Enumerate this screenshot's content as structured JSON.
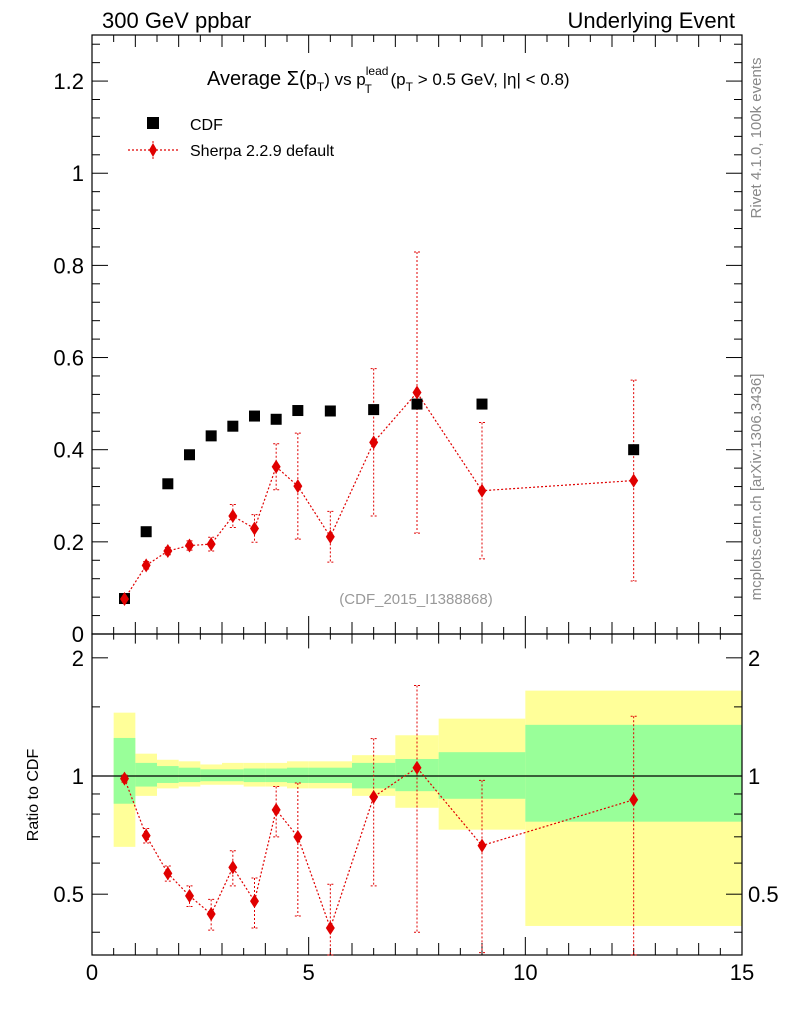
{
  "header": {
    "left": "300 GeV ppbar",
    "right": "Underlying Event"
  },
  "side_labels": {
    "rivet": "Rivet 4.1.0,  100k events",
    "mcplots": "mcplots.cern.ch [arXiv:1306.3436]"
  },
  "chart_data": [
    {
      "type": "scatter",
      "title_parts": {
        "average": "Average",
        "sigma": "Σ(p",
        "sub_t": "T",
        "vs": ") vs p",
        "sup_lead": "lead",
        "cond": "(p",
        "cond_rest": "> 0.5 GeV, |η| < 0.8)"
      },
      "analysis_id": "(CDF_2015_I1388868)",
      "xlim": [
        0,
        15
      ],
      "ylim": [
        0,
        1.3
      ],
      "yticks": [
        0,
        0.2,
        0.4,
        0.6,
        0.8,
        1,
        1.2
      ],
      "ytick_labels": [
        "0",
        "0.2",
        "0.4",
        "0.6",
        "0.8",
        "1",
        "1.2"
      ],
      "legend": [
        {
          "name": "CDF",
          "marker": "square",
          "color": "#000000"
        },
        {
          "name": "Sherpa 2.2.9 default",
          "marker": "diamond",
          "color": "#e00000"
        }
      ],
      "series": [
        {
          "name": "CDF",
          "x": [
            0.75,
            1.25,
            1.75,
            2.25,
            2.75,
            3.25,
            3.75,
            4.25,
            4.75,
            5.5,
            6.5,
            7.5,
            9.0,
            12.5
          ],
          "y": [
            0.077,
            0.222,
            0.326,
            0.389,
            0.43,
            0.451,
            0.473,
            0.466,
            0.485,
            0.484,
            0.487,
            0.499,
            0.499,
            0.4
          ]
        },
        {
          "name": "Sherpa 2.2.9 default",
          "x": [
            0.75,
            1.25,
            1.75,
            2.25,
            2.75,
            3.25,
            3.75,
            4.25,
            4.75,
            5.5,
            6.5,
            7.5,
            9.0,
            12.5
          ],
          "y": [
            0.076,
            0.149,
            0.18,
            0.192,
            0.195,
            0.256,
            0.229,
            0.363,
            0.321,
            0.211,
            0.416,
            0.524,
            0.311,
            0.333
          ],
          "err": [
            0.005,
            0.008,
            0.008,
            0.01,
            0.015,
            0.025,
            0.03,
            0.05,
            0.115,
            0.055,
            0.16,
            0.305,
            0.148,
            0.218
          ]
        }
      ]
    },
    {
      "type": "ratio",
      "ylabel": "Ratio to CDF",
      "xlim": [
        0,
        15
      ],
      "ylim": [
        0.35,
        2.3
      ],
      "yticks": [
        0.5,
        1,
        2
      ],
      "ytick_labels": [
        "0.5",
        "1",
        "2"
      ],
      "xticks": [
        0,
        5,
        10,
        15
      ],
      "xtick_labels": [
        "0",
        "5",
        "10",
        "15"
      ],
      "bands": [
        {
          "x0": 0.5,
          "x1": 1.0,
          "g": [
            0.85,
            1.25
          ],
          "y": [
            0.66,
            1.45
          ]
        },
        {
          "x0": 1.0,
          "x1": 1.5,
          "g": [
            0.94,
            1.08
          ],
          "y": [
            0.89,
            1.14
          ]
        },
        {
          "x0": 1.5,
          "x1": 2.0,
          "g": [
            0.96,
            1.06
          ],
          "y": [
            0.93,
            1.1
          ]
        },
        {
          "x0": 2.0,
          "x1": 2.5,
          "g": [
            0.965,
            1.05
          ],
          "y": [
            0.94,
            1.09
          ]
        },
        {
          "x0": 2.5,
          "x1": 3.0,
          "g": [
            0.97,
            1.04
          ],
          "y": [
            0.95,
            1.07
          ]
        },
        {
          "x0": 3.0,
          "x1": 3.5,
          "g": [
            0.97,
            1.04
          ],
          "y": [
            0.95,
            1.08
          ]
        },
        {
          "x0": 3.5,
          "x1": 4.0,
          "g": [
            0.965,
            1.045
          ],
          "y": [
            0.94,
            1.08
          ]
        },
        {
          "x0": 4.0,
          "x1": 4.5,
          "g": [
            0.965,
            1.045
          ],
          "y": [
            0.94,
            1.08
          ]
        },
        {
          "x0": 4.5,
          "x1": 5.0,
          "g": [
            0.96,
            1.05
          ],
          "y": [
            0.93,
            1.09
          ]
        },
        {
          "x0": 5.0,
          "x1": 6.0,
          "g": [
            0.96,
            1.05
          ],
          "y": [
            0.93,
            1.09
          ]
        },
        {
          "x0": 6.0,
          "x1": 7.0,
          "g": [
            0.93,
            1.08
          ],
          "y": [
            0.89,
            1.13
          ]
        },
        {
          "x0": 7.0,
          "x1": 8.0,
          "g": [
            0.915,
            1.105
          ],
          "y": [
            0.83,
            1.27
          ]
        },
        {
          "x0": 8.0,
          "x1": 10.0,
          "g": [
            0.875,
            1.15
          ],
          "y": [
            0.73,
            1.4
          ]
        },
        {
          "x0": 10.0,
          "x1": 15.0,
          "g": [
            0.765,
            1.35
          ],
          "y": [
            0.415,
            1.65
          ]
        }
      ],
      "series": [
        {
          "name": "Sherpa 2.2.9 default / CDF",
          "x": [
            0.75,
            1.25,
            1.75,
            2.25,
            2.75,
            3.25,
            3.75,
            4.25,
            4.75,
            5.5,
            6.5,
            7.5,
            9.0,
            12.5
          ],
          "y": [
            0.985,
            0.705,
            0.565,
            0.495,
            0.445,
            0.585,
            0.48,
            0.82,
            0.7,
            0.41,
            0.885,
            1.05,
            0.665,
            0.87
          ],
          "err": [
            0.02,
            0.03,
            0.025,
            0.03,
            0.04,
            0.06,
            0.07,
            0.12,
            0.26,
            0.12,
            0.36,
            0.65,
            0.31,
            0.55
          ]
        }
      ]
    }
  ]
}
